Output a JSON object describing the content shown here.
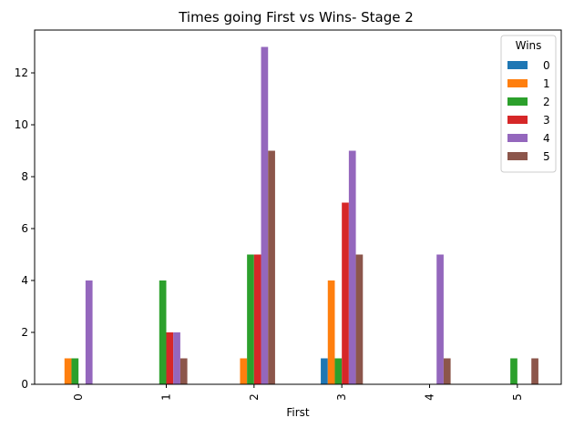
{
  "chart_data": {
    "type": "bar",
    "title": "Times going First vs Wins- Stage 2",
    "xlabel": "First",
    "ylabel": "",
    "categories": [
      "0",
      "1",
      "2",
      "3",
      "4",
      "5"
    ],
    "ylim": [
      0,
      13.65
    ],
    "yticks": [
      0,
      2,
      4,
      6,
      8,
      10,
      12
    ],
    "grid": false,
    "legend_title": "Wins",
    "legend_placement": "top-right",
    "series": [
      {
        "name": "0",
        "color": "#1f77b4",
        "values": [
          0,
          0,
          0,
          1,
          0,
          0
        ]
      },
      {
        "name": "1",
        "color": "#ff7f0e",
        "values": [
          1,
          0,
          1,
          4,
          0,
          0
        ]
      },
      {
        "name": "2",
        "color": "#2ca02c",
        "values": [
          1,
          4,
          5,
          1,
          0,
          1
        ]
      },
      {
        "name": "3",
        "color": "#d62728",
        "values": [
          0,
          2,
          5,
          7,
          0,
          0
        ]
      },
      {
        "name": "4",
        "color": "#9467bd",
        "values": [
          4,
          2,
          13,
          9,
          5,
          0
        ]
      },
      {
        "name": "5",
        "color": "#8c564b",
        "values": [
          0,
          1,
          9,
          5,
          1,
          1
        ]
      }
    ]
  }
}
